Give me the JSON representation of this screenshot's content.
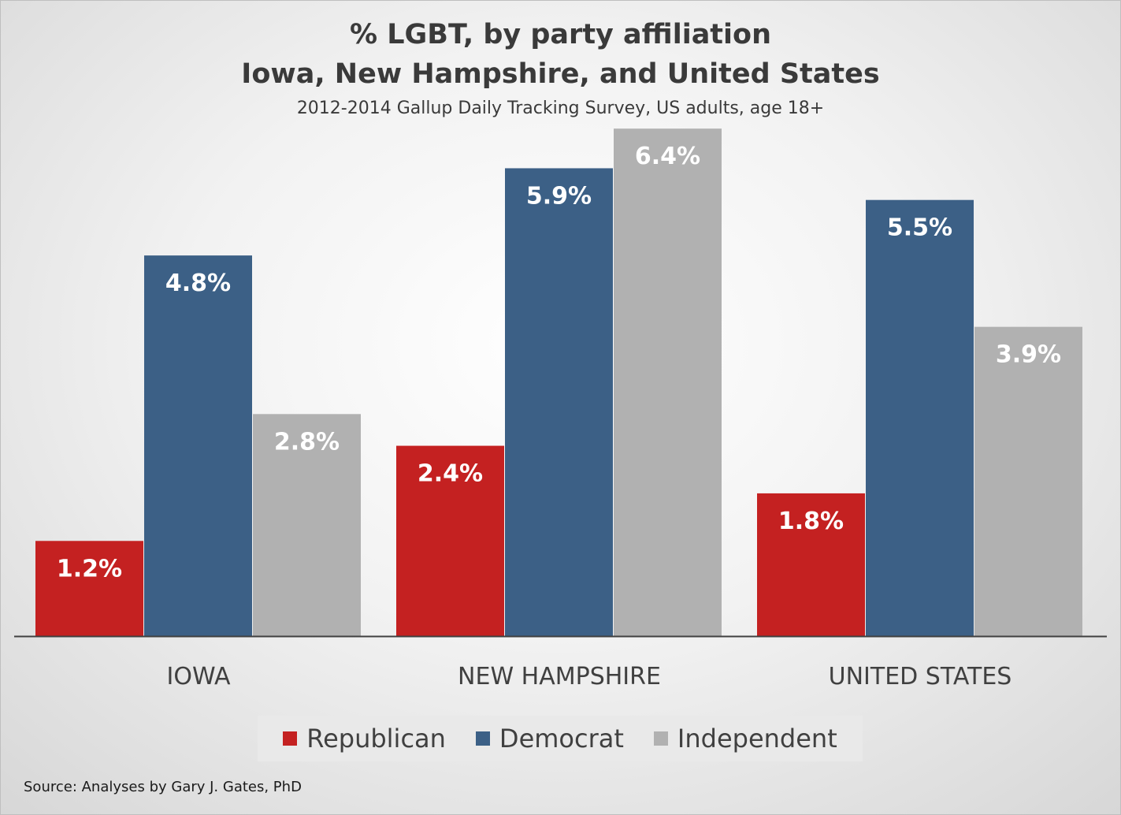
{
  "chart_data": {
    "type": "bar",
    "title": "% LGBT, by party affiliation",
    "title_line2": "Iowa, New Hampshire, and United States",
    "subtitle": "2012-2014 Gallup Daily Tracking Survey, US adults, age 18+",
    "categories": [
      "IOWA",
      "NEW HAMPSHIRE",
      "UNITED STATES"
    ],
    "series": [
      {
        "name": "Republican",
        "color": "#c42121",
        "values": [
          1.2,
          2.4,
          1.8
        ],
        "labels": [
          "1.2%",
          "2.4%",
          "1.8%"
        ]
      },
      {
        "name": "Democrat",
        "color": "#3c6086",
        "values": [
          4.8,
          5.9,
          5.5
        ],
        "labels": [
          "4.8%",
          "5.9%",
          "5.5%"
        ]
      },
      {
        "name": "Independent",
        "color": "#b1b1b1",
        "values": [
          2.8,
          6.4,
          3.9
        ],
        "labels": [
          "2.8%",
          "6.4%",
          "3.9%"
        ]
      }
    ],
    "ylim": [
      0,
      6.4
    ],
    "xlabel": "",
    "ylabel": "",
    "grid": false,
    "legend": "bottom",
    "source": "Source: Analyses by Gary J. Gates, PhD"
  }
}
